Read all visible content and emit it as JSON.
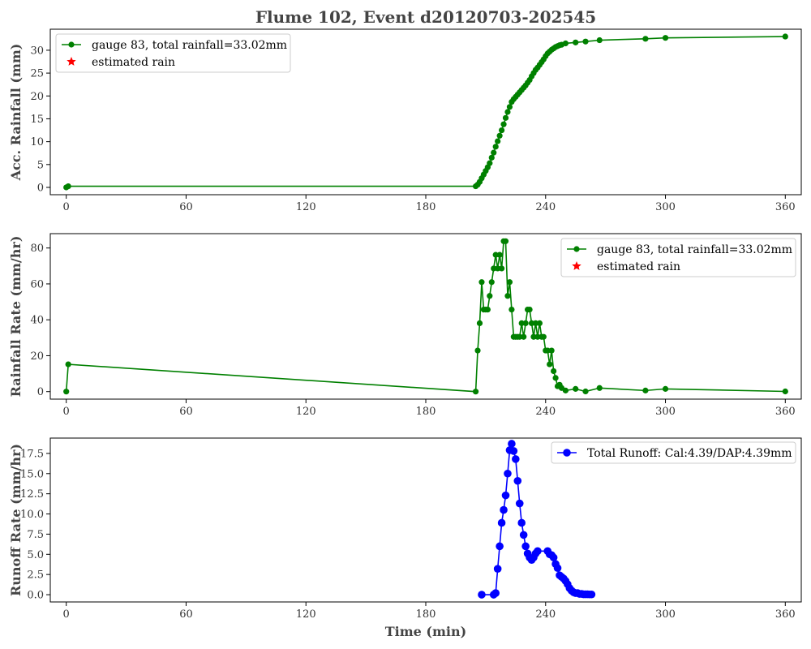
{
  "figure_title": "Flume 102, Event d20120703-202545",
  "chart_data": [
    {
      "type": "line",
      "ylabel": "Acc. Rainfall (mm)",
      "xlabel": "",
      "xlim": [
        -8,
        368
      ],
      "ylim": [
        -1.6,
        34.6
      ],
      "xticks": [
        0,
        60,
        120,
        180,
        240,
        300,
        360
      ],
      "yticks": [
        0,
        5,
        10,
        15,
        20,
        25,
        30
      ],
      "ytick_labels": [
        "0",
        "5",
        "10",
        "15",
        "20",
        "25",
        "30"
      ],
      "grid": false,
      "legend_position": "upper-left",
      "series": [
        {
          "name": "gauge 83, total rainfall=33.02mm",
          "color": "#008000",
          "marker": "circle",
          "x": [
            0,
            1,
            205,
            206,
            207,
            208,
            209,
            210,
            211,
            212,
            213,
            214,
            215,
            216,
            217,
            218,
            219,
            220,
            221,
            222,
            223,
            224,
            225,
            226,
            227,
            228,
            229,
            230,
            231,
            232,
            233,
            234,
            235,
            236,
            237,
            238,
            239,
            240,
            241,
            242,
            243,
            244,
            245,
            246,
            247,
            248,
            250,
            255,
            260,
            267,
            290,
            300,
            360
          ],
          "y": [
            0.0,
            0.25,
            0.25,
            0.6,
            1.2,
            2.0,
            2.8,
            3.6,
            4.4,
            5.3,
            6.5,
            7.6,
            8.9,
            10.1,
            11.3,
            12.5,
            13.8,
            15.2,
            16.5,
            17.6,
            18.7,
            19.3,
            19.8,
            20.3,
            20.8,
            21.3,
            21.8,
            22.3,
            22.9,
            23.5,
            24.3,
            25.0,
            25.7,
            26.2,
            26.8,
            27.4,
            28.0,
            28.7,
            29.3,
            29.7,
            30.1,
            30.4,
            30.7,
            30.9,
            31.1,
            31.2,
            31.5,
            31.7,
            31.9,
            32.2,
            32.5,
            32.7,
            33.0
          ]
        },
        {
          "name": "estimated rain",
          "color": "#ff0000",
          "marker": "star",
          "x": [],
          "y": []
        }
      ]
    },
    {
      "type": "line",
      "ylabel": "Rainfall Rate (mm/hr)",
      "xlabel": "",
      "xlim": [
        -8,
        368
      ],
      "ylim": [
        -4.2,
        88
      ],
      "xticks": [
        0,
        60,
        120,
        180,
        240,
        300,
        360
      ],
      "yticks": [
        0,
        20,
        40,
        60,
        80
      ],
      "ytick_labels": [
        "0",
        "20",
        "40",
        "60",
        "80"
      ],
      "grid": false,
      "legend_position": "upper-right",
      "series": [
        {
          "name": "gauge 83, total rainfall=33.02mm",
          "color": "#008000",
          "marker": "circle",
          "x": [
            0,
            1,
            205,
            206,
            207,
            208,
            209,
            210,
            211,
            212,
            213,
            214,
            215,
            216,
            217,
            218,
            219,
            220,
            221,
            222,
            223,
            224,
            225,
            226,
            227,
            228,
            229,
            230,
            231,
            232,
            233,
            234,
            235,
            236,
            237,
            238,
            239,
            240,
            241,
            242,
            243,
            244,
            245,
            246,
            247,
            248,
            250,
            255,
            260,
            267,
            290,
            300,
            360
          ],
          "y": [
            0,
            15.2,
            0,
            22.9,
            38.1,
            61.0,
            45.7,
            45.7,
            45.7,
            53.3,
            61.0,
            68.6,
            76.2,
            68.6,
            76.2,
            68.6,
            83.8,
            83.8,
            53.3,
            61.0,
            45.7,
            30.5,
            30.5,
            30.5,
            30.5,
            38.1,
            30.5,
            38.1,
            45.7,
            45.7,
            38.1,
            30.5,
            38.1,
            30.5,
            38.1,
            30.5,
            30.5,
            22.9,
            22.9,
            15.2,
            22.9,
            11.4,
            7.6,
            3.0,
            3.8,
            2.0,
            0.6,
            1.5,
            0.1,
            2.0,
            0.6,
            1.5,
            0.1
          ]
        },
        {
          "name": "estimated rain",
          "color": "#ff0000",
          "marker": "star",
          "x": [],
          "y": []
        }
      ]
    },
    {
      "type": "line",
      "ylabel": "Runoff Rate (mm/hr)",
      "xlabel": "Time (min)",
      "xlim": [
        -8,
        368
      ],
      "ylim": [
        -0.9,
        19.4
      ],
      "xticks": [
        0,
        60,
        120,
        180,
        240,
        300,
        360
      ],
      "yticks": [
        0,
        2.5,
        5,
        7.5,
        10,
        12.5,
        15,
        17.5
      ],
      "ytick_labels": [
        "0.0",
        "2.5",
        "5.0",
        "7.5",
        "10.0",
        "12.5",
        "15.0",
        "17.5"
      ],
      "grid": false,
      "legend_position": "upper-right",
      "series": [
        {
          "name": "Total Runoff: Cal:4.39/DAP:4.39mm",
          "color": "#0000ff",
          "marker": "circle",
          "x": [
            208,
            214,
            215,
            216,
            217,
            218,
            219,
            220,
            221,
            222,
            223,
            224,
            225,
            226,
            227,
            228,
            229,
            230,
            231,
            232,
            233,
            234,
            235,
            236,
            241,
            242,
            243,
            244,
            245,
            246,
            247,
            248,
            249,
            250,
            251,
            252,
            253,
            254,
            255,
            256,
            257,
            258,
            259,
            260,
            261,
            262,
            263
          ],
          "y": [
            0.0,
            0.0,
            0.2,
            3.2,
            6.0,
            8.9,
            10.5,
            12.3,
            15.0,
            17.9,
            18.7,
            17.8,
            16.8,
            14.1,
            11.3,
            8.9,
            7.4,
            6.0,
            5.1,
            4.6,
            4.3,
            4.6,
            5.1,
            5.4,
            5.4,
            5.0,
            4.9,
            4.6,
            3.8,
            3.3,
            2.4,
            2.2,
            2.0,
            1.7,
            1.3,
            0.8,
            0.5,
            0.3,
            0.2,
            0.2,
            0.1,
            0.1,
            0.05,
            0.05,
            0.05,
            0.03,
            0.03
          ]
        }
      ]
    }
  ]
}
